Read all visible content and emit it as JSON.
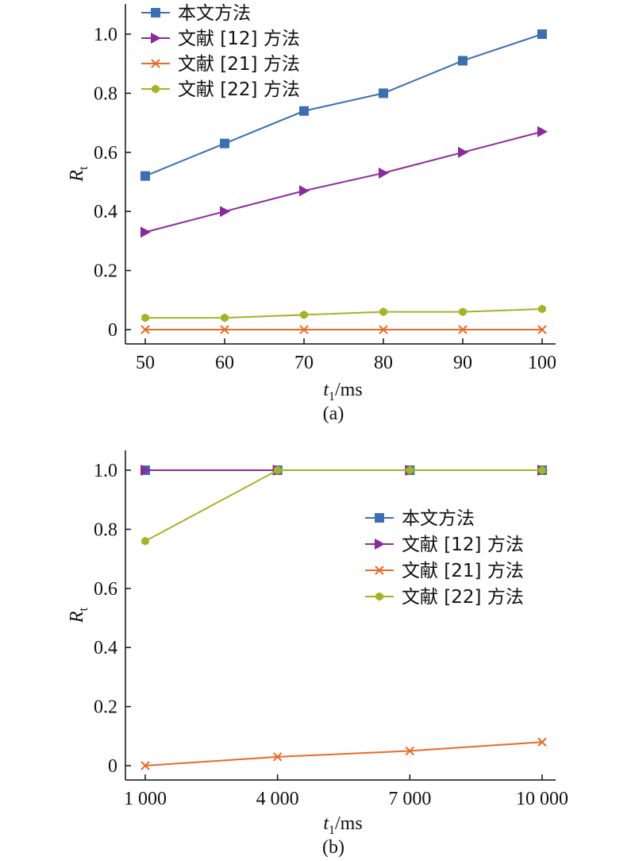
{
  "colors": {
    "s1": "#3c6fb2",
    "s2": "#8b2a9c",
    "s3": "#ea6a27",
    "s4": "#a5b326",
    "axis": "#111111"
  },
  "chart_data": [
    {
      "type": "line",
      "caption": "(a)",
      "xlabel": {
        "var": "t",
        "sub": "1",
        "unit": "/ms"
      },
      "ylabel": {
        "var": "R",
        "sub": "t"
      },
      "x": [
        50,
        60,
        70,
        80,
        90,
        100
      ],
      "x_tick_labels": [
        "50",
        "60",
        "70",
        "80",
        "90",
        "100"
      ],
      "y_ticks": [
        0,
        0.2,
        0.4,
        0.6,
        0.8,
        1.0
      ],
      "y_tick_labels": [
        "0",
        "0.2",
        "0.4",
        "0.6",
        "0.8",
        "1.0"
      ],
      "xlim": [
        50,
        100
      ],
      "ylim": [
        -0.05,
        1.05
      ],
      "grid": false,
      "legend_position": "top-left",
      "series": [
        {
          "name": "本文方法",
          "marker": "square",
          "color": "#3c6fb2",
          "values": [
            0.52,
            0.63,
            0.74,
            0.8,
            0.91,
            1.0
          ]
        },
        {
          "name": "文献 [12] 方法",
          "marker": "triangle-right",
          "color": "#8b2a9c",
          "values": [
            0.33,
            0.4,
            0.47,
            0.53,
            0.6,
            0.67
          ]
        },
        {
          "name": "文献 [21] 方法",
          "marker": "x",
          "color": "#ea6a27",
          "values": [
            0,
            0,
            0,
            0,
            0,
            0
          ]
        },
        {
          "name": "文献 [22] 方法",
          "marker": "hexagon",
          "color": "#a5b326",
          "values": [
            0.04,
            0.04,
            0.05,
            0.06,
            0.06,
            0.07
          ]
        }
      ]
    },
    {
      "type": "line",
      "caption": "(b)",
      "xlabel": {
        "var": "t",
        "sub": "1",
        "unit": "/ms"
      },
      "ylabel": {
        "var": "R",
        "sub": "t"
      },
      "x": [
        1000,
        4000,
        7000,
        10000
      ],
      "x_tick_labels": [
        "1 000",
        "4 000",
        "7 000",
        "10 000"
      ],
      "y_ticks": [
        0,
        0.2,
        0.4,
        0.6,
        0.8,
        1.0
      ],
      "y_tick_labels": [
        "0",
        "0.2",
        "0.4",
        "0.6",
        "0.8",
        "1.0"
      ],
      "xlim": [
        1000,
        10000
      ],
      "ylim": [
        -0.05,
        1.05
      ],
      "grid": false,
      "legend_position": "center-right",
      "series": [
        {
          "name": "本文方法",
          "marker": "square",
          "color": "#3c6fb2",
          "values": [
            1.0,
            1.0,
            1.0,
            1.0
          ]
        },
        {
          "name": "文献 [12] 方法",
          "marker": "triangle-right",
          "color": "#8b2a9c",
          "values": [
            1.0,
            1.0,
            1.0,
            1.0
          ]
        },
        {
          "name": "文献 [21] 方法",
          "marker": "x",
          "color": "#ea6a27",
          "values": [
            0.0,
            0.03,
            0.05,
            0.08
          ]
        },
        {
          "name": "文献 [22] 方法",
          "marker": "hexagon",
          "color": "#a5b326",
          "values": [
            0.76,
            1.0,
            1.0,
            1.0
          ]
        }
      ]
    }
  ]
}
